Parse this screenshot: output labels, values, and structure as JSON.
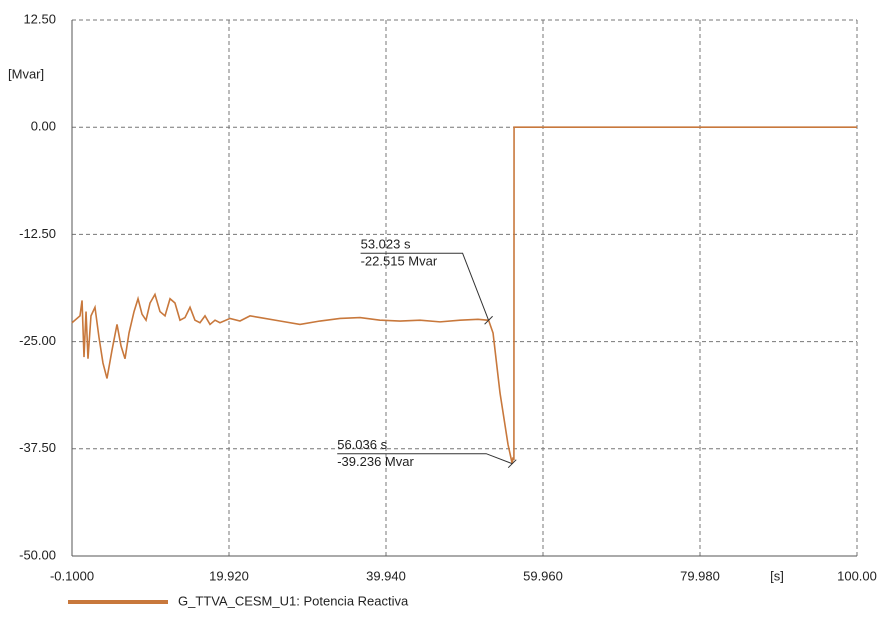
{
  "chart_data": {
    "type": "line",
    "xlabel": "[s]",
    "ylabel": "[Mvar]",
    "xlim": [
      -0.1,
      100
    ],
    "ylim": [
      -50,
      12.5
    ],
    "xticks": [
      {
        "value": -0.1,
        "label": "-0.1000"
      },
      {
        "value": 19.92,
        "label": "19.920"
      },
      {
        "value": 39.94,
        "label": "39.940"
      },
      {
        "value": 59.96,
        "label": "59.960"
      },
      {
        "value": 79.98,
        "label": "79.980"
      },
      {
        "value": 100,
        "label": "100.00"
      }
    ],
    "yticks": [
      {
        "value": -50,
        "label": "-50.00"
      },
      {
        "value": -37.5,
        "label": "-37.50"
      },
      {
        "value": -25,
        "label": "-25.00"
      },
      {
        "value": -12.5,
        "label": "-12.50"
      },
      {
        "value": 0,
        "label": "0.00"
      },
      {
        "value": 12.5,
        "label": "12.50"
      }
    ],
    "grid": true,
    "x": [
      -0.1,
      0.92,
      1.18,
      1.43,
      1.69,
      1.94,
      2.32,
      2.83,
      3.34,
      3.85,
      4.36,
      5.0,
      5.64,
      6.15,
      6.66,
      7.17,
      7.81,
      8.32,
      8.83,
      9.34,
      9.85,
      10.48,
      11.12,
      11.76,
      12.4,
      13.03,
      13.67,
      14.31,
      14.95,
      15.58,
      16.22,
      16.86,
      17.5,
      18.14,
      18.77,
      20.05,
      21.32,
      22.6,
      23.87,
      26.42,
      28.97,
      31.52,
      34.08,
      36.63,
      39.18,
      41.73,
      44.28,
      46.83,
      49.38,
      51.67,
      53.023,
      53.59,
      54.48,
      55.5,
      56.036,
      56.14,
      56.25,
      56.27,
      100
    ],
    "series": [
      {
        "name": "G_TTVA_CESM_U1: Potencia Reactiva",
        "color": "#c8783c",
        "values": [
          -22.8,
          -22.0,
          -20.2,
          -26.8,
          -21.5,
          -27.0,
          -22.0,
          -21.0,
          -24.5,
          -27.5,
          -29.3,
          -26.0,
          -23.0,
          -25.5,
          -27.0,
          -24.0,
          -21.5,
          -20.0,
          -21.8,
          -22.5,
          -20.5,
          -19.5,
          -21.5,
          -22.0,
          -20.0,
          -20.5,
          -22.5,
          -22.2,
          -21.0,
          -22.5,
          -22.8,
          -22.0,
          -23.0,
          -22.5,
          -22.8,
          -22.3,
          -22.6,
          -22.0,
          -22.2,
          -22.6,
          -23.0,
          -22.6,
          -22.3,
          -22.2,
          -22.5,
          -22.6,
          -22.5,
          -22.7,
          -22.5,
          -22.4,
          -22.515,
          -24.0,
          -31.0,
          -37.0,
          -39.236,
          -38.5,
          -38.8,
          0,
          0
        ]
      }
    ],
    "annotations": [
      {
        "x": 53.023,
        "y": -22.515,
        "x_label": "53.023 s",
        "y_label": "-22.515 Mvar"
      },
      {
        "x": 56.036,
        "y": -39.236,
        "x_label": "56.036 s",
        "y_label": "-39.236 Mvar"
      }
    ]
  }
}
